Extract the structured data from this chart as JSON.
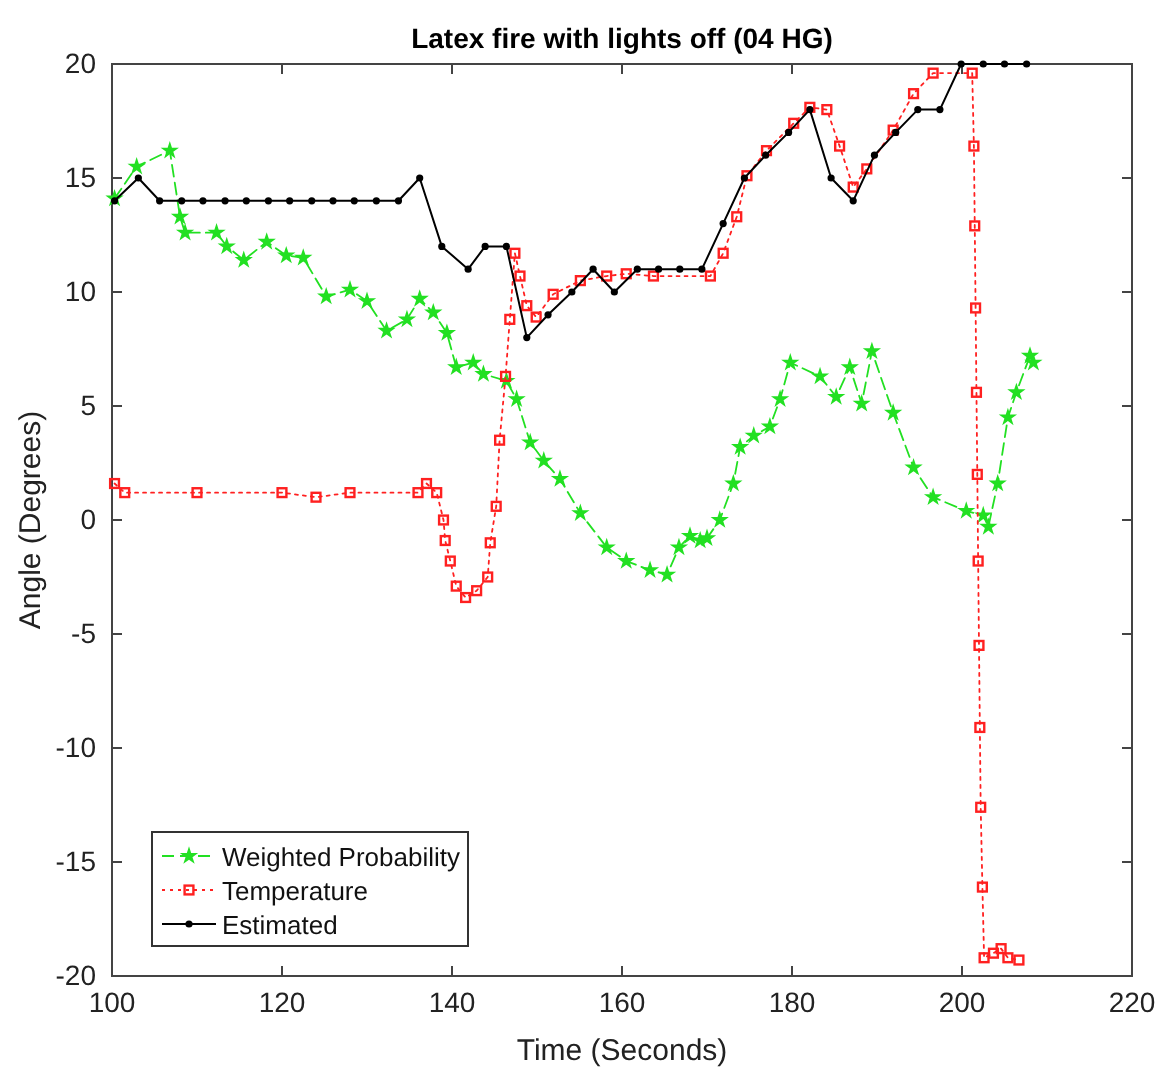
{
  "chart_data": {
    "type": "line",
    "title": "Latex fire with lights off (04 HG)",
    "xlabel": "Time (Seconds)",
    "ylabel": "Angle (Degrees)",
    "xlim": [
      100,
      220
    ],
    "xticks": [
      100,
      120,
      140,
      160,
      180,
      200,
      220
    ],
    "ylim": [
      -20,
      20
    ],
    "yticks": [
      -20,
      -15,
      -10,
      -5,
      0,
      5,
      10,
      15,
      20
    ],
    "grid": false,
    "legend": "bottom left",
    "series": [
      {
        "name": "Weighted Probability",
        "color": "#22e022",
        "marker": "star",
        "line_style": "dashed",
        "x": [
          100.3,
          102.9,
          106.8,
          108.0,
          108.6,
          112.3,
          113.5,
          115.5,
          118.2,
          120.5,
          122.5,
          125.2,
          128,
          130,
          132.3,
          134.7,
          136.2,
          137.8,
          139.4,
          140.5,
          142.5,
          143.7,
          146.4,
          147.6,
          149.2,
          150.8,
          152.7,
          155.1,
          158.2,
          160.5,
          163.3,
          165.3,
          166.7,
          168,
          169.2,
          170,
          171.5,
          173.1,
          173.9,
          175.5,
          177.4,
          178.6,
          179.8,
          183.3,
          185.2,
          186.8,
          188.2,
          189.4,
          191.9,
          194.3,
          196.6,
          200.5,
          202.5,
          203.1,
          204.2,
          205.4,
          206.4,
          208,
          208.4
        ],
        "values": [
          14.1,
          15.5,
          16.2,
          13.3,
          12.6,
          12.6,
          12.0,
          11.4,
          12.2,
          11.6,
          11.5,
          9.8,
          10.1,
          9.6,
          8.3,
          8.8,
          9.7,
          9.1,
          8.2,
          6.7,
          6.9,
          6.4,
          6.1,
          5.3,
          3.4,
          2.6,
          1.8,
          0.3,
          -1.2,
          -1.8,
          -2.2,
          -2.4,
          -1.2,
          -0.7,
          -0.9,
          -0.8,
          0,
          1.6,
          3.2,
          3.7,
          4.1,
          5.3,
          6.9,
          6.3,
          5.4,
          6.7,
          5.1,
          7.4,
          4.7,
          2.3,
          1.0,
          0.4,
          0.2,
          -0.3,
          1.6,
          4.5,
          5.6,
          7.2,
          6.9
        ]
      },
      {
        "name": "Temperature",
        "color": "#ff2020",
        "marker": "square",
        "line_style": "dotted",
        "x": [
          100.3,
          101.5,
          110,
          120,
          124,
          128,
          136,
          137,
          138.2,
          139,
          139.2,
          139.8,
          140.5,
          141.6,
          142.9,
          144.2,
          144.5,
          145.2,
          145.6,
          146.3,
          146.8,
          147.4,
          148,
          148.8,
          149.9,
          151.9,
          155.1,
          158.2,
          160.5,
          163.7,
          170.4,
          171.9,
          173.5,
          174.7,
          177,
          180.2,
          182.1,
          184.1,
          185.6,
          187.2,
          188.8,
          191.9,
          194.3,
          196.6,
          201.2,
          201.4,
          201.5,
          201.6,
          201.7,
          201.8,
          201.9,
          202,
          202.1,
          202.2,
          202.4,
          202.6,
          203.7,
          204.6,
          205.4,
          206.7
        ],
        "values": [
          1.6,
          1.2,
          1.2,
          1.2,
          1.0,
          1.2,
          1.2,
          1.6,
          1.2,
          0,
          -0.9,
          -1.8,
          -2.9,
          -3.4,
          -3.1,
          -2.5,
          -1.0,
          0.6,
          3.5,
          6.3,
          8.8,
          11.7,
          10.7,
          9.4,
          8.9,
          9.9,
          10.5,
          10.7,
          10.8,
          10.7,
          10.7,
          11.7,
          13.3,
          15.1,
          16.2,
          17.4,
          18.1,
          18,
          16.4,
          14.6,
          15.4,
          17.1,
          18.7,
          19.6,
          19.6,
          16.4,
          12.9,
          9.3,
          5.6,
          2.0,
          -1.8,
          -5.5,
          -9.1,
          -12.6,
          -16.1,
          -19.2,
          -19.0,
          -18.8,
          -19.2,
          -19.3
        ]
      },
      {
        "name": "Estimated",
        "color": "#000000",
        "marker": "circle",
        "line_style": "solid",
        "x": [
          100.3,
          103.1,
          105.6,
          108.2,
          110.7,
          113.3,
          115.8,
          118.4,
          120.9,
          123.5,
          126,
          128.5,
          131.1,
          133.7,
          136.2,
          138.8,
          141.9,
          143.9,
          146.4,
          148.8,
          151.3,
          154.1,
          156.6,
          159.1,
          161.8,
          164.3,
          166.8,
          169.4,
          171.9,
          174.4,
          176.9,
          179.6,
          182.1,
          184.6,
          187.2,
          189.7,
          192.2,
          194.8,
          197.4,
          199.9,
          202.5,
          205,
          207.6
        ],
        "values": [
          14,
          15,
          14,
          14,
          14,
          14,
          14,
          14,
          14,
          14,
          14,
          14,
          14,
          14,
          15,
          12,
          11,
          12,
          12,
          8,
          9,
          10,
          11,
          10,
          11,
          11,
          11,
          11,
          13,
          15,
          16,
          17,
          18,
          15,
          14,
          16,
          17,
          18,
          18,
          20,
          20,
          20,
          20
        ]
      }
    ]
  }
}
